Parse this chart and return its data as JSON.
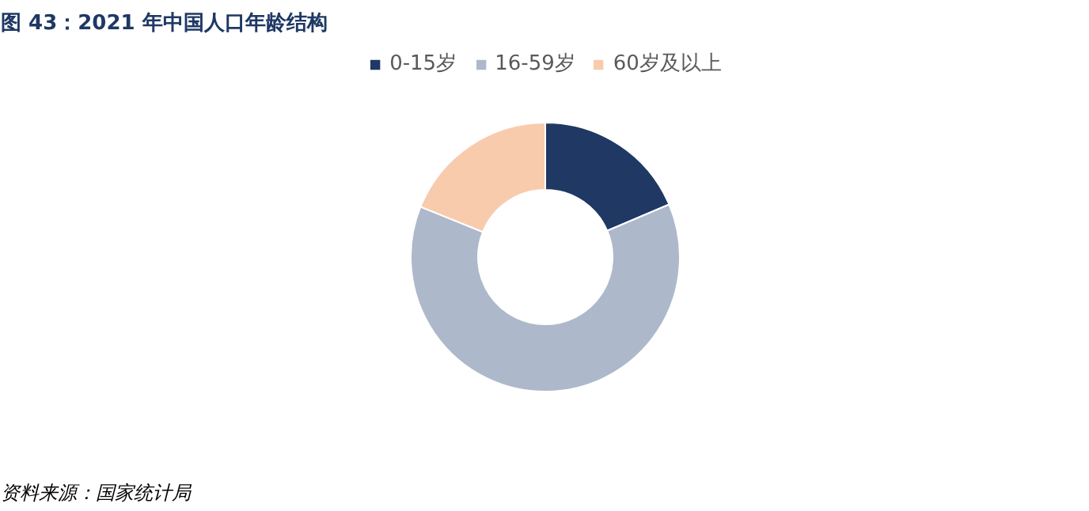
{
  "chart_data": {
    "type": "donut",
    "title": "图 43：2021 年中国人口年龄结构",
    "categories": [
      "0-15岁",
      "16-59岁",
      "60岁及以上"
    ],
    "values": [
      18.6,
      62.5,
      18.9
    ],
    "colors": [
      "#1f3864",
      "#adb9ca",
      "#f8cbad"
    ],
    "legend": "top",
    "annotations": [
      "资料来源：国家统计局"
    ]
  }
}
